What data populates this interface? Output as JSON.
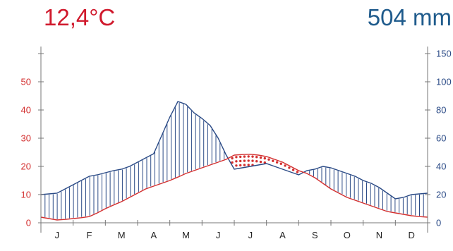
{
  "header": {
    "annual_mean_temp": "12,4°C",
    "annual_precip": "504 mm"
  },
  "colors": {
    "temperature": "#d32f2f",
    "precipitation": "#2a4a86",
    "temp_text": "#d0192c",
    "precip_text": "#1f5b8c",
    "axis": "#777777"
  },
  "chart_data": {
    "type": "line",
    "title": "",
    "categories": [
      "J",
      "F",
      "M",
      "A",
      "M",
      "J",
      "J",
      "A",
      "S",
      "O",
      "N",
      "D"
    ],
    "x": [
      0,
      1,
      2,
      3,
      4,
      5,
      6,
      7,
      8,
      9,
      10,
      11,
      12,
      13,
      14,
      15,
      16,
      17,
      18,
      19,
      20,
      21,
      22,
      23,
      24,
      25,
      26,
      27,
      28,
      29,
      30,
      31,
      32,
      33,
      34,
      35,
      36,
      37,
      38,
      39,
      40,
      41,
      42,
      43,
      44,
      45,
      46,
      47,
      48
    ],
    "series": [
      {
        "name": "",
        "axis": "left",
        "unit": "°C",
        "values": [
          2,
          1.5,
          1,
          1.2,
          1.5,
          1.8,
          2.2,
          3.5,
          5,
          6.3,
          7.5,
          9,
          10.5,
          12,
          13,
          14,
          15,
          16.2,
          17.5,
          18.5,
          19.5,
          20.5,
          21.5,
          22.5,
          24,
          24.2,
          24.3,
          24,
          23.5,
          22.5,
          21.5,
          20,
          18.5,
          17.5,
          16,
          14,
          12,
          10.5,
          9,
          8,
          7,
          6,
          5,
          4,
          3.5,
          3,
          2.5,
          2.2,
          2
        ]
      },
      {
        "name": "",
        "axis": "right",
        "unit": "mm",
        "values": [
          20,
          20.5,
          21,
          24,
          27,
          30,
          33,
          34,
          35.5,
          37,
          38,
          40,
          43,
          46,
          49,
          62,
          75,
          86,
          84,
          78,
          74,
          69,
          60,
          48,
          38,
          39,
          40,
          41,
          42,
          40,
          38,
          36,
          34,
          37,
          38,
          40,
          39,
          37,
          35,
          33,
          30,
          28,
          25,
          21,
          17,
          18,
          20,
          20.5,
          21
        ]
      }
    ],
    "ylim_left": [
      0,
      60
    ],
    "ylim_right": [
      0,
      150
    ],
    "yticks_left": [
      0,
      10,
      20,
      30,
      40,
      50
    ],
    "yticks_right": [
      0,
      20,
      40,
      60,
      80,
      100,
      150
    ],
    "grid": false
  }
}
